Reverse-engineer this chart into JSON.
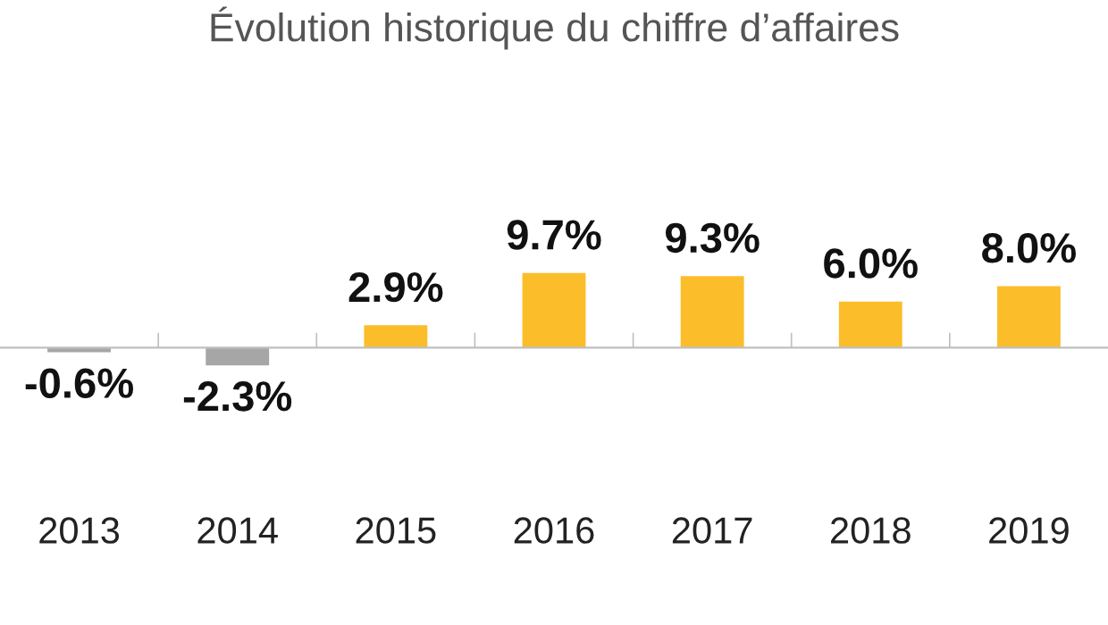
{
  "chart_data": {
    "type": "bar",
    "title": "Évolution historique du chiffre d’affaires",
    "categories": [
      "2013",
      "2014",
      "2015",
      "2016",
      "2017",
      "2018",
      "2019"
    ],
    "values": [
      -0.6,
      -2.3,
      2.9,
      9.7,
      9.3,
      6.0,
      8.0
    ],
    "colors": [
      "#a6a6a6",
      "#a6a6a6",
      "#fbbd2a",
      "#fbbd2a",
      "#fbbd2a",
      "#fbbd2a",
      "#fbbd2a"
    ],
    "value_labels": [
      "-0.6%",
      "-2.3%",
      "2.9%",
      "9.7%",
      "9.3%",
      "6.0%",
      "8.0%"
    ],
    "grid": false,
    "legend": false
  }
}
